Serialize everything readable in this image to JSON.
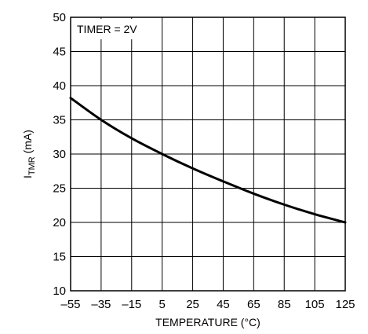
{
  "chart_data": {
    "type": "line",
    "title": "",
    "annotation": "TIMER = 2V",
    "xlabel": "TEMPERATURE (°C)",
    "ylabel": {
      "main": "I",
      "sub": "TMR",
      "suffix": " (mA)"
    },
    "xlim": [
      -55,
      125
    ],
    "ylim": [
      10,
      50
    ],
    "x_ticks": [
      -55,
      -35,
      -15,
      5,
      25,
      45,
      65,
      85,
      105,
      125
    ],
    "x_tick_labels": [
      "–55",
      "–35",
      "–15",
      "5",
      "25",
      "45",
      "65",
      "85",
      "105",
      "125"
    ],
    "y_ticks": [
      10,
      15,
      20,
      25,
      30,
      35,
      40,
      45,
      50
    ],
    "y_tick_labels": [
      "10",
      "15",
      "20",
      "25",
      "30",
      "35",
      "40",
      "45",
      "50"
    ],
    "grid": true,
    "legend": "none",
    "series": [
      {
        "x": [
          -55,
          -35,
          -15,
          5,
          25,
          45,
          65,
          85,
          105,
          125
        ],
        "y": [
          38.2,
          35.0,
          32.3,
          30.0,
          27.9,
          26.0,
          24.2,
          22.6,
          21.2,
          20.0
        ]
      }
    ]
  }
}
